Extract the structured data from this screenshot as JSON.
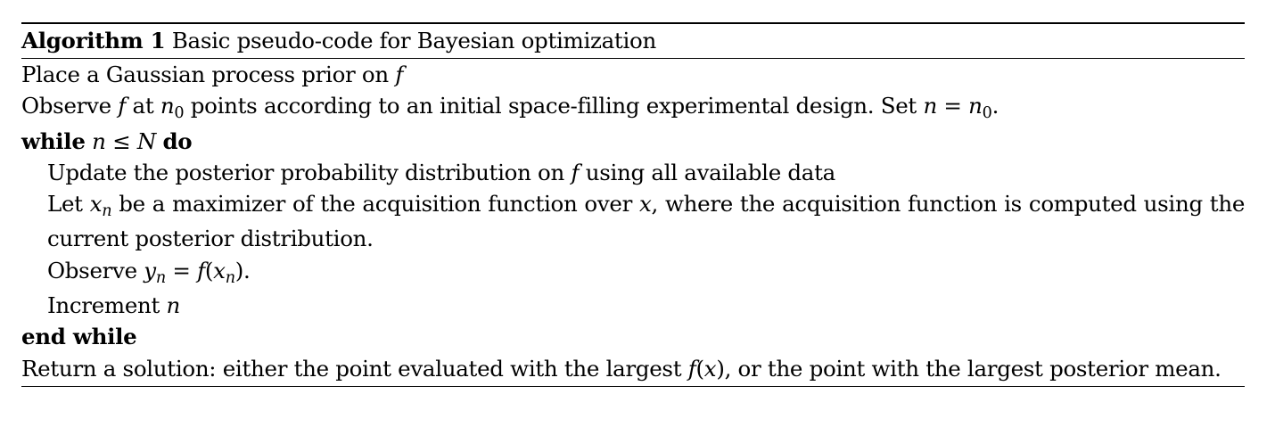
{
  "algorithm": {
    "label": "Algorithm 1",
    "caption": "Basic pseudo-code for Bayesian optimization"
  },
  "lines": {
    "l1": {
      "text": "Place a Gaussian process prior on ",
      "f": "f"
    },
    "l2": {
      "a": "Observe ",
      "f": "f",
      "b": " at ",
      "n0": "n",
      "n0sub": "0",
      "c": " points according to an initial space-filling experimental design. Set ",
      "n": "n",
      "eq": " = ",
      "n0b": "n",
      "n0bsub": "0",
      "d": "."
    },
    "l3": {
      "kw_while": "while",
      "n": "n",
      "leq": " ≤ ",
      "N": "N",
      "kw_do": "do"
    },
    "l4": {
      "a": "Update the posterior probability distribution on ",
      "f": "f",
      "b": " using all available data"
    },
    "l5": {
      "a": "Let ",
      "x": "x",
      "xsub": "n",
      "b": " be a maximizer of the acquisition function over ",
      "x2": "x",
      "c": ", where the acquisition function is computed using the current posterior distribution."
    },
    "l6": {
      "a": "Observe ",
      "y": "y",
      "ysub": "n",
      "eq": " = ",
      "f": "f",
      "paren_open": "(",
      "x": "x",
      "xsub": "n",
      "paren_close": ").",
      "end": ""
    },
    "l7": {
      "a": "Increment ",
      "n": "n"
    },
    "l8": {
      "kw_end": "end while"
    },
    "l9": {
      "a": "Return a solution: either the point evaluated with the largest ",
      "f": "f",
      "paren_open": "(",
      "x": "x",
      "b": "), or the point with the largest posterior mean."
    }
  }
}
